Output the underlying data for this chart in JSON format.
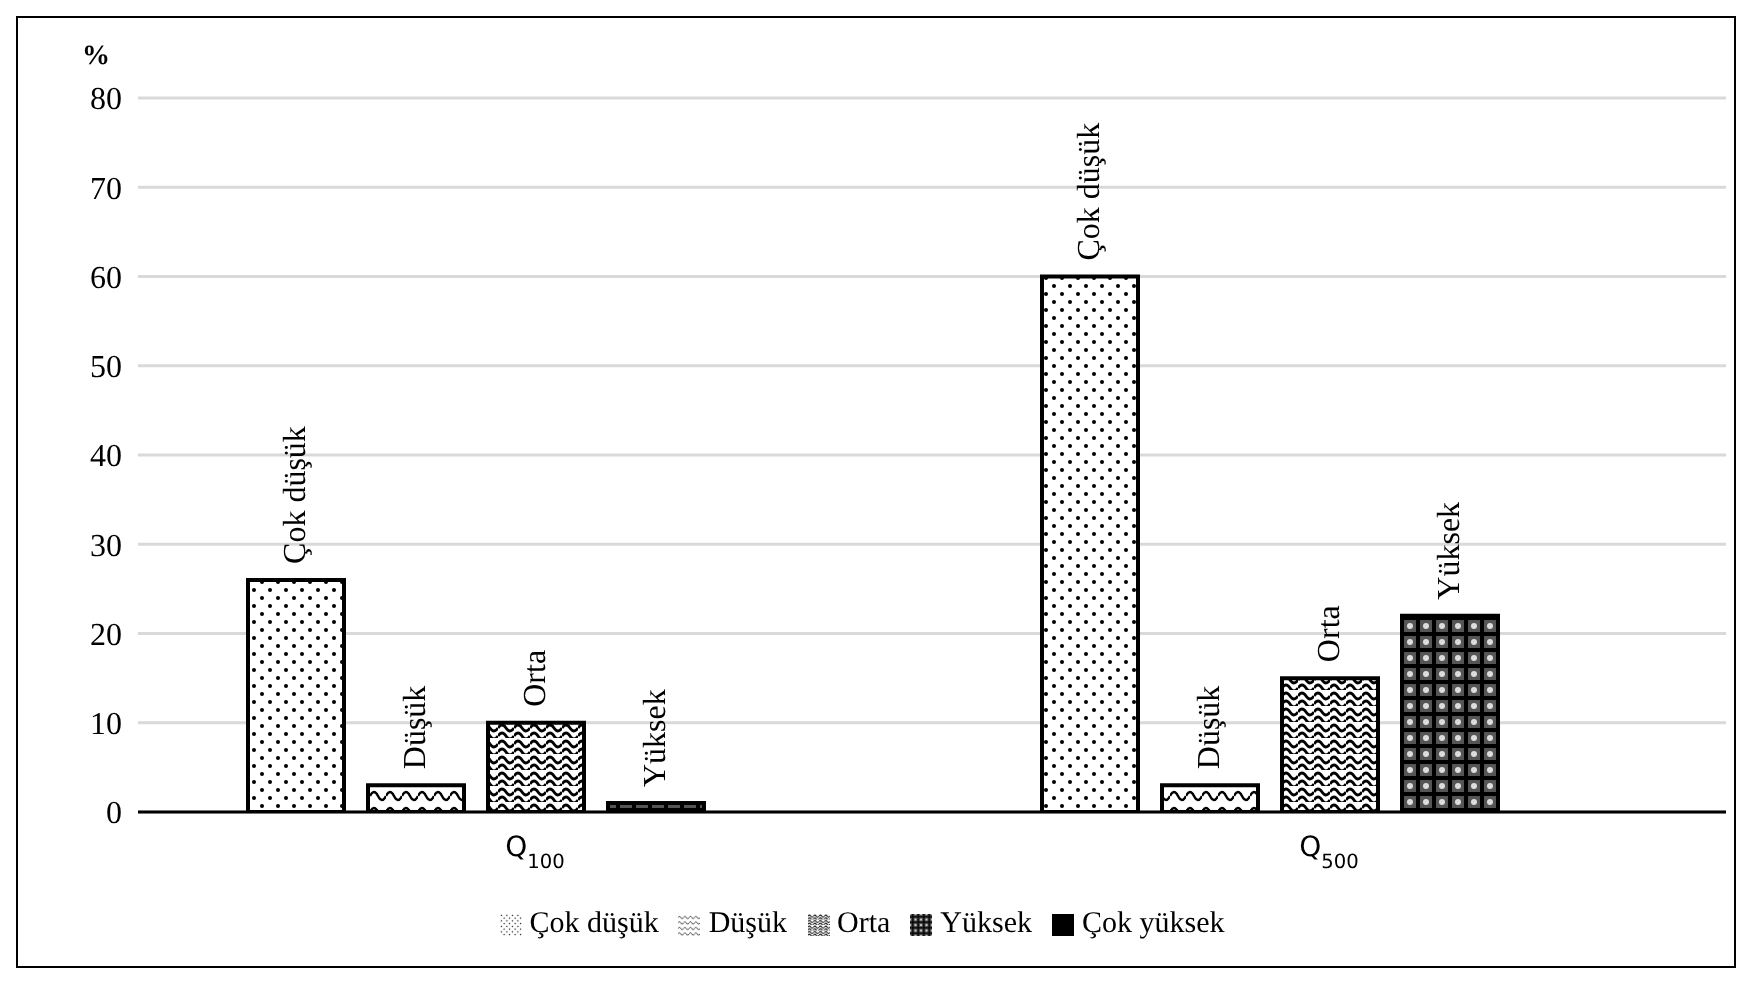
{
  "chart_data": {
    "type": "bar",
    "ylabel": "%",
    "categories": [
      "Q$_{100}$",
      "Q$_{500}$"
    ],
    "series": [
      {
        "name": "Çok düşük",
        "color": "#000000",
        "values": [
          26,
          60
        ],
        "value_labels": [
          "Çok düşük",
          "Çok düşük"
        ]
      },
      {
        "name": "Düşük",
        "color": "#000000",
        "values": [
          3,
          3
        ],
        "value_labels": [
          "Düşük",
          "Düşük"
        ]
      },
      {
        "name": "Orta",
        "color": "#000000",
        "values": [
          10,
          15
        ],
        "value_labels": [
          "Orta",
          "Orta"
        ]
      },
      {
        "name": "Yüksek",
        "color": "#000000",
        "values": [
          1,
          22
        ],
        "value_labels": [
          "Yüksek",
          "Yüksek"
        ]
      },
      {
        "name": "Çok yüksek",
        "color": "#000000",
        "values": [
          0,
          0
        ],
        "value_labels": [
          null,
          null
        ]
      }
    ],
    "ylim": [
      0,
      80
    ],
    "yticks": [
      0,
      10,
      20,
      30,
      40,
      50,
      60,
      70,
      80
    ],
    "grid": "y",
    "legend": "bottom"
  }
}
